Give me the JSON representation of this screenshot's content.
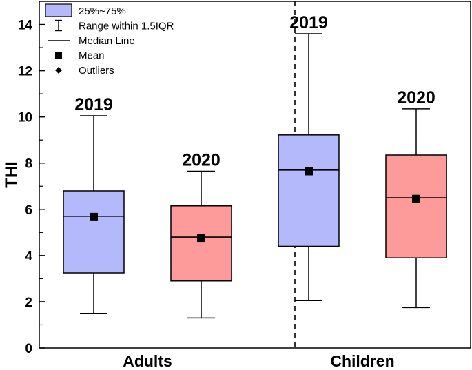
{
  "chart_data": {
    "type": "box",
    "ylabel": "THI",
    "ylim": [
      0,
      15
    ],
    "yticks": [
      0,
      2,
      4,
      6,
      8,
      10,
      12,
      14
    ],
    "categories": [
      "Adults",
      "Children"
    ],
    "legend": {
      "placement": "top-left",
      "items": [
        {
          "key": "box",
          "label": "25%~75%"
        },
        {
          "key": "range",
          "label": "Range within 1.5IQR"
        },
        {
          "key": "median",
          "label": "Median Line"
        },
        {
          "key": "mean",
          "label": "Mean"
        },
        {
          "key": "outliers",
          "label": "Outliers"
        }
      ]
    },
    "colors": {
      "2019": "#b4b9fb",
      "2020": "#fd9a9a"
    },
    "boxes": [
      {
        "category": "Adults",
        "label": "2019",
        "whisker_low": 1.5,
        "q1": 3.25,
        "median": 5.7,
        "q3": 6.8,
        "whisker_high": 10.05,
        "mean": 5.67
      },
      {
        "category": "Adults",
        "label": "2020",
        "whisker_low": 1.3,
        "q1": 2.9,
        "median": 4.8,
        "q3": 6.15,
        "whisker_high": 7.65,
        "mean": 4.77
      },
      {
        "category": "Children",
        "label": "2019",
        "whisker_low": 2.05,
        "q1": 4.4,
        "median": 7.7,
        "q3": 9.22,
        "whisker_high": 13.6,
        "mean": 7.65
      },
      {
        "category": "Children",
        "label": "2020",
        "whisker_low": 1.75,
        "q1": 3.9,
        "median": 6.5,
        "q3": 8.35,
        "whisker_high": 10.35,
        "mean": 6.45
      }
    ]
  }
}
